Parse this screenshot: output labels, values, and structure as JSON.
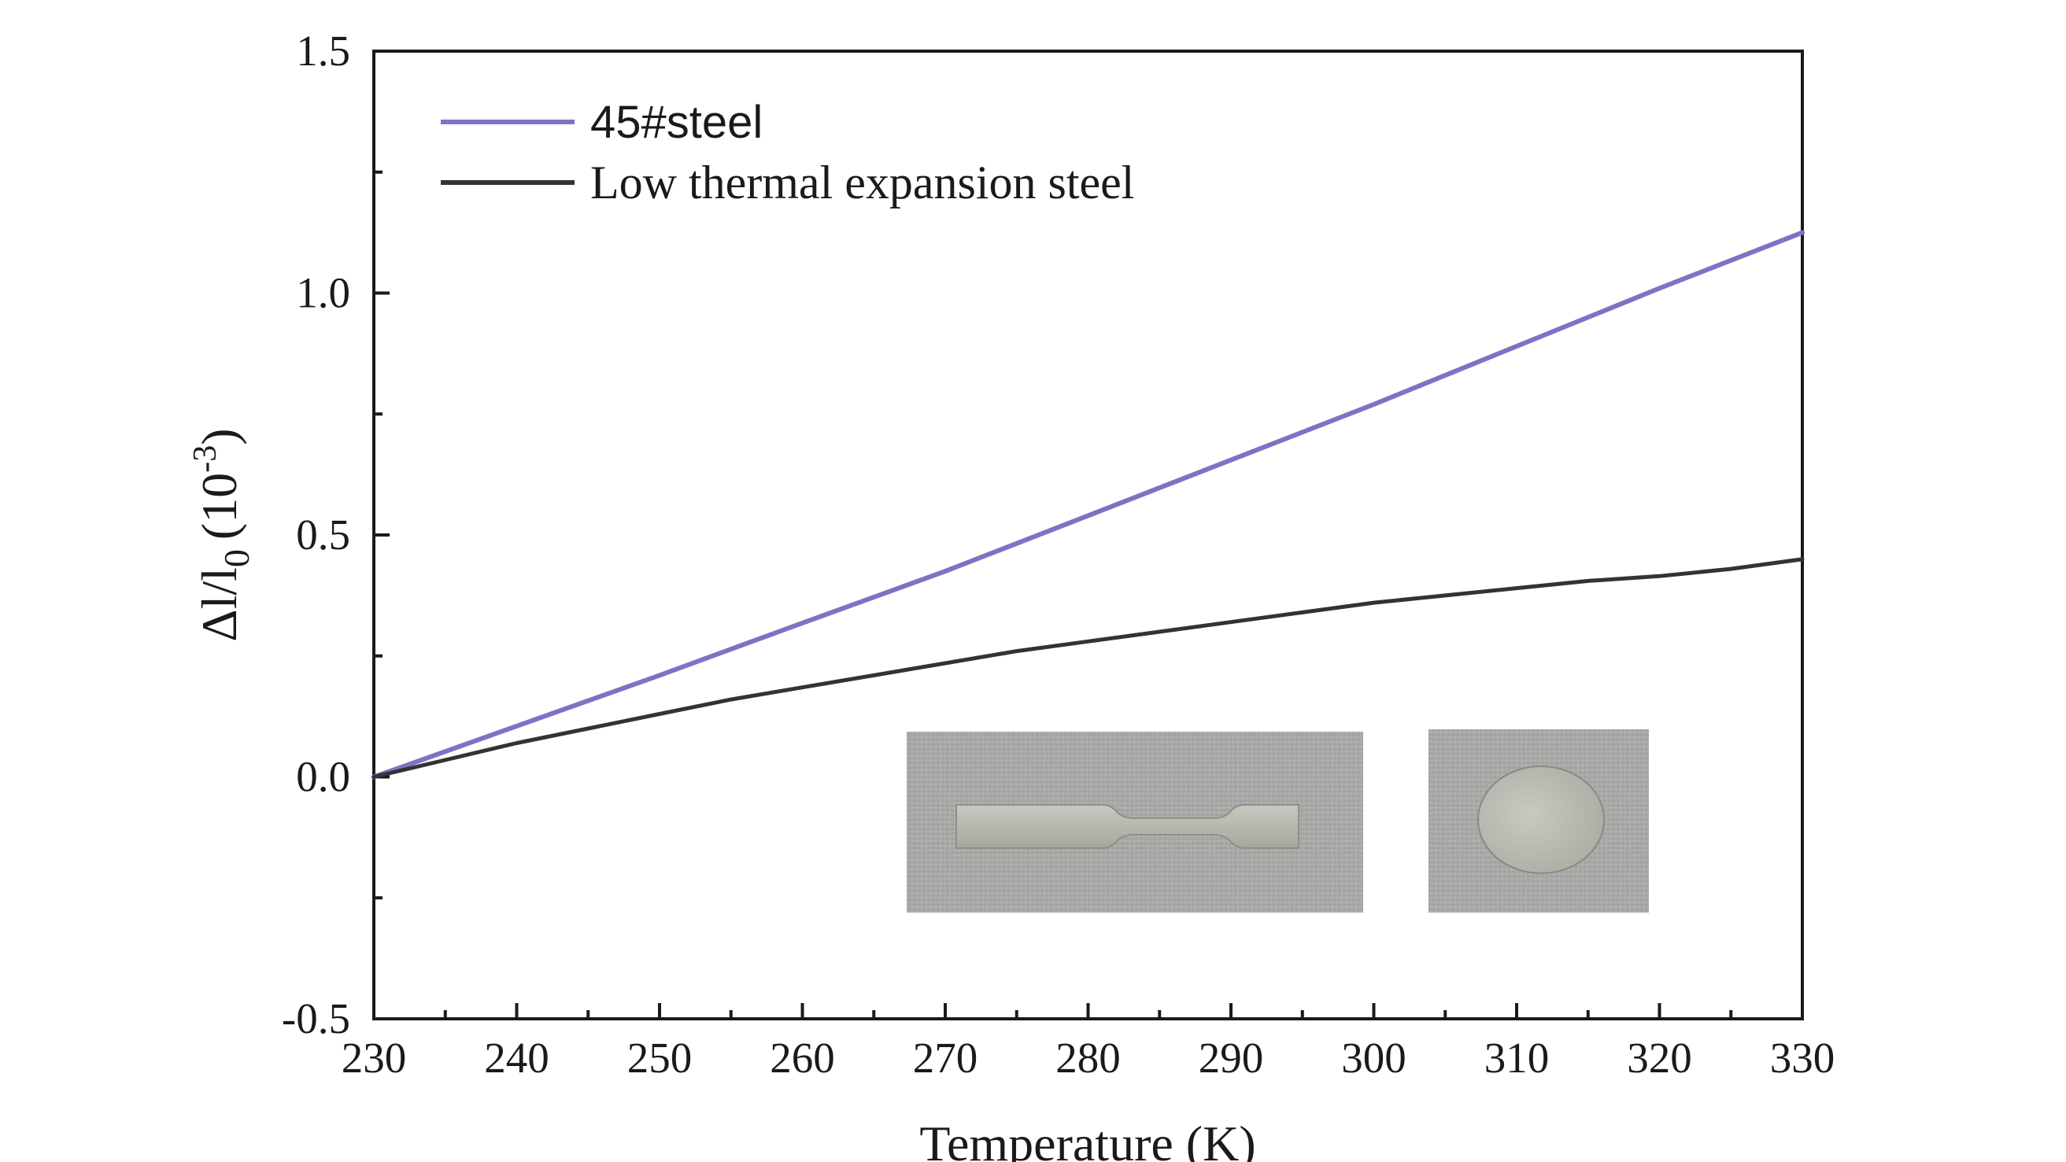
{
  "chart_data": {
    "type": "line",
    "title": "",
    "xlabel": "Temperature (K)",
    "ylabel": {
      "base": "Δl/l",
      "subscript": "0",
      "unit_prefix": "(10",
      "superscript": "-3",
      "unit_suffix": ")"
    },
    "xlim": [
      230,
      330
    ],
    "ylim": [
      -0.5,
      1.5
    ],
    "x_ticks": [
      230,
      240,
      250,
      260,
      270,
      280,
      290,
      300,
      310,
      320,
      330
    ],
    "x_tick_labels": [
      "230",
      "240",
      "250",
      "260",
      "270",
      "280",
      "290",
      "300",
      "310",
      "320",
      "330"
    ],
    "y_ticks": [
      -0.5,
      0.0,
      0.5,
      1.0,
      1.5
    ],
    "y_tick_labels": [
      "-0.5",
      "0.0",
      "0.5",
      "1.0",
      "1.5"
    ],
    "grid": false,
    "legend_position": "top-left",
    "series": [
      {
        "name": "45#steel",
        "color": "#7b74c4",
        "x": [
          230,
          240,
          250,
          260,
          270,
          280,
          290,
          300,
          310,
          320,
          330
        ],
        "y": [
          0.0,
          0.105,
          0.21,
          0.318,
          0.425,
          0.54,
          0.655,
          0.77,
          0.89,
          1.01,
          1.125
        ]
      },
      {
        "name": "Low thermal expansion steel",
        "color": "#333333",
        "x": [
          230,
          235,
          240,
          245,
          250,
          255,
          260,
          265,
          270,
          275,
          280,
          285,
          290,
          295,
          300,
          305,
          310,
          315,
          320,
          325,
          330
        ],
        "y": [
          0.0,
          0.035,
          0.07,
          0.1,
          0.13,
          0.16,
          0.185,
          0.21,
          0.235,
          0.26,
          0.28,
          0.3,
          0.32,
          0.34,
          0.36,
          0.375,
          0.39,
          0.405,
          0.415,
          0.43,
          0.45
        ]
      }
    ],
    "inset": {
      "description_icons": [
        "dogbone-specimen-photo",
        "disc-specimen-photo"
      ],
      "background_color": "#a9a9a9",
      "specimen_color": "#bfbfb4"
    }
  }
}
